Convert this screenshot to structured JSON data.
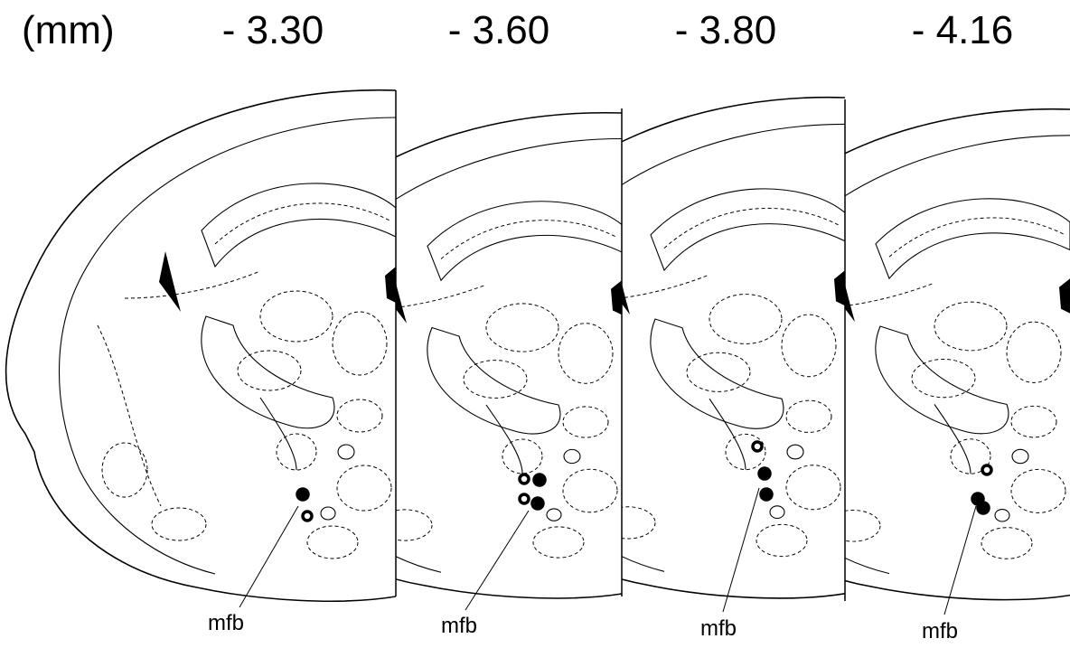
{
  "unit_label": "(mm)",
  "sections": [
    {
      "label": "- 3.30",
      "annotation": "mfb"
    },
    {
      "label": "- 3.60",
      "annotation": "mfb"
    },
    {
      "label": "- 3.80",
      "annotation": "mfb"
    },
    {
      "label": "- 4.16",
      "annotation": "mfb"
    }
  ]
}
